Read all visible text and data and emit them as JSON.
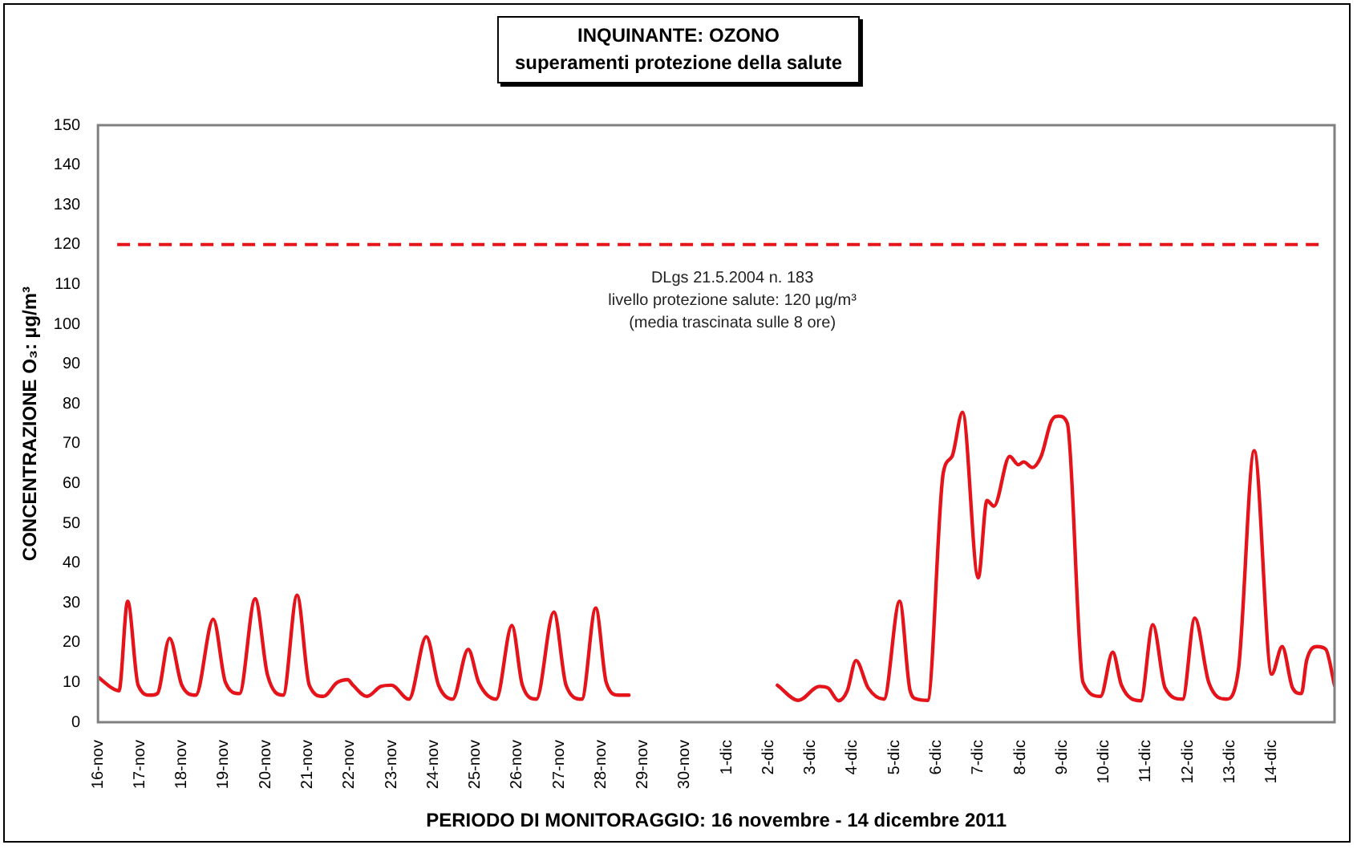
{
  "chart_data": {
    "type": "line",
    "title": "INQUINANTE: OZONO",
    "subtitle": "superamenti protezione della salute",
    "xlabel": "PERIODO DI MONITORAGGIO: 16 novembre - 14 dicembre 2011",
    "ylabel": "CONCENTRAZIONE O₃: µg/m³",
    "x": [
      "2011-11-16T00:00",
      "2011-11-16T08:00",
      "2011-11-16T12:00",
      "2011-11-16T17:00",
      "2011-11-16T23:00",
      "2011-11-17T06:00",
      "2011-11-17T10:00",
      "2011-11-17T17:00",
      "2011-11-18T00:00",
      "2011-11-18T08:00",
      "2011-11-18T18:00",
      "2011-11-19T01:00",
      "2011-11-19T09:00",
      "2011-11-19T18:00",
      "2011-11-20T01:00",
      "2011-11-20T10:00",
      "2011-11-20T18:00",
      "2011-11-21T01:00",
      "2011-11-21T09:00",
      "2011-11-21T17:00",
      "2011-11-21T23:00",
      "2011-11-22T02:00",
      "2011-11-22T10:00",
      "2011-11-22T18:00",
      "2011-11-23T00:00",
      "2011-11-23T10:00",
      "2011-11-23T20:00",
      "2011-11-24T03:00",
      "2011-11-24T11:00",
      "2011-11-24T20:00",
      "2011-11-25T02:00",
      "2011-11-25T12:00",
      "2011-11-25T21:00",
      "2011-11-26T03:00",
      "2011-11-26T11:00",
      "2011-11-26T21:00",
      "2011-11-27T04:00",
      "2011-11-27T13:00",
      "2011-11-27T21:00",
      "2011-11-28T03:00",
      "2011-11-28T10:00",
      "2011-11-28T16:00",
      "2011-11-30T00:00",
      "2011-12-02T05:00",
      "2011-12-02T17:00",
      "2011-12-03T05:00",
      "2011-12-03T10:00",
      "2011-12-03T16:00",
      "2011-12-03T21:00",
      "2011-12-04T02:00",
      "2011-12-04T09:00",
      "2011-12-04T18:00",
      "2011-12-05T03:00",
      "2011-12-05T09:00",
      "2011-12-05T13:00",
      "2011-12-05T19:00",
      "2011-12-06T04:00",
      "2011-12-06T09:00",
      "2011-12-06T15:00",
      "2011-12-07T00:00",
      "2011-12-07T05:00",
      "2011-12-07T09:00",
      "2011-12-07T18:00",
      "2011-12-07T23:00",
      "2011-12-08T02:00",
      "2011-12-08T07:00",
      "2011-12-08T12:00",
      "2011-12-08T18:00",
      "2011-12-08T22:00",
      "2011-12-09T03:00",
      "2011-12-09T12:00",
      "2011-12-09T22:00",
      "2011-12-10T05:00",
      "2011-12-10T10:00",
      "2011-12-10T21:00",
      "2011-12-11T04:00",
      "2011-12-11T11:00",
      "2011-12-11T21:00",
      "2011-12-12T04:00",
      "2011-12-12T12:00",
      "2011-12-12T22:00",
      "2011-12-13T05:00",
      "2011-12-13T14:00",
      "2011-12-14T00:00",
      "2011-12-14T06:00",
      "2011-12-14T12:00",
      "2011-12-14T17:00",
      "2011-12-14T20:00",
      "2011-12-15T02:00",
      "2011-12-15T07:00",
      "2011-12-15T12:00"
    ],
    "series": [
      {
        "color": "#e5141b",
        "values": [
          11.4,
          8.6,
          7.9,
          30.4,
          9.3,
          6.8,
          7.2,
          21.1,
          9.3,
          6.8,
          25.9,
          10,
          7.2,
          31,
          12,
          6.8,
          31.9,
          9.3,
          6.5,
          10,
          10.7,
          9.3,
          6.5,
          9,
          9.3,
          5.8,
          21.5,
          9.3,
          5.8,
          18.3,
          10,
          5.8,
          24.3,
          9.3,
          5.8,
          27.7,
          9.3,
          5.8,
          28.7,
          10,
          6.8,
          6.8,
          null,
          9.3,
          5.5,
          9,
          8.6,
          5.4,
          7.9,
          15.5,
          8.6,
          5.8,
          30.4,
          7.9,
          5.8,
          5.5,
          62.7,
          66.8,
          77.9,
          36.3,
          55.7,
          54.3,
          66.8,
          64.7,
          65.4,
          64,
          66.8,
          75.8,
          76.9,
          75.1,
          10,
          6.5,
          17.6,
          9.3,
          5.4,
          24.5,
          8.6,
          5.8,
          26.2,
          10,
          5.8,
          13.4,
          68.2,
          12.1,
          19,
          8.6,
          7.2,
          15.5,
          19,
          18.3,
          9.3
        ]
      }
    ],
    "xlim": [
      "2011-11-16T00:00",
      "2011-12-15T12:00"
    ],
    "xticks": [
      {
        "value": "2011-11-16",
        "label": "16-nov"
      },
      {
        "value": "2011-11-17",
        "label": "17-nov"
      },
      {
        "value": "2011-11-18",
        "label": "18-nov"
      },
      {
        "value": "2011-11-19",
        "label": "19-nov"
      },
      {
        "value": "2011-11-20",
        "label": "20-nov"
      },
      {
        "value": "2011-11-21",
        "label": "21-nov"
      },
      {
        "value": "2011-11-22",
        "label": "22-nov"
      },
      {
        "value": "2011-11-23",
        "label": "23-nov"
      },
      {
        "value": "2011-11-24",
        "label": "24-nov"
      },
      {
        "value": "2011-11-25",
        "label": "25-nov"
      },
      {
        "value": "2011-11-26",
        "label": "26-nov"
      },
      {
        "value": "2011-11-27",
        "label": "27-nov"
      },
      {
        "value": "2011-11-28",
        "label": "28-nov"
      },
      {
        "value": "2011-11-29",
        "label": "29-nov"
      },
      {
        "value": "2011-11-30",
        "label": "30-nov"
      },
      {
        "value": "2011-12-01",
        "label": "1-dic"
      },
      {
        "value": "2011-12-02",
        "label": "2-dic"
      },
      {
        "value": "2011-12-03",
        "label": "3-dic"
      },
      {
        "value": "2011-12-04",
        "label": "4-dic"
      },
      {
        "value": "2011-12-05",
        "label": "5-dic"
      },
      {
        "value": "2011-12-06",
        "label": "6-dic"
      },
      {
        "value": "2011-12-07",
        "label": "7-dic"
      },
      {
        "value": "2011-12-08",
        "label": "8-dic"
      },
      {
        "value": "2011-12-09",
        "label": "9-dic"
      },
      {
        "value": "2011-12-10",
        "label": "10-dic"
      },
      {
        "value": "2011-12-11",
        "label": "11-dic"
      },
      {
        "value": "2011-12-12",
        "label": "12-dic"
      },
      {
        "value": "2011-12-13",
        "label": "13-dic"
      },
      {
        "value": "2011-12-14",
        "label": "14-dic"
      }
    ],
    "ylim": [
      0,
      150
    ],
    "yticks": [
      0,
      10,
      20,
      30,
      40,
      50,
      60,
      70,
      80,
      90,
      100,
      110,
      120,
      130,
      140,
      150
    ],
    "ref_lines": [
      {
        "axis": "y",
        "value": 120,
        "label": "DLgs 21.5.2004 n. 183\nlivello protezione salute: 120 µg/m³\n(media trascinata sulle 8 ore)",
        "color": "#e5141b",
        "line_style": "dashed"
      }
    ],
    "grid": false,
    "legend": false,
    "marker": "none",
    "line_style": "solid"
  }
}
